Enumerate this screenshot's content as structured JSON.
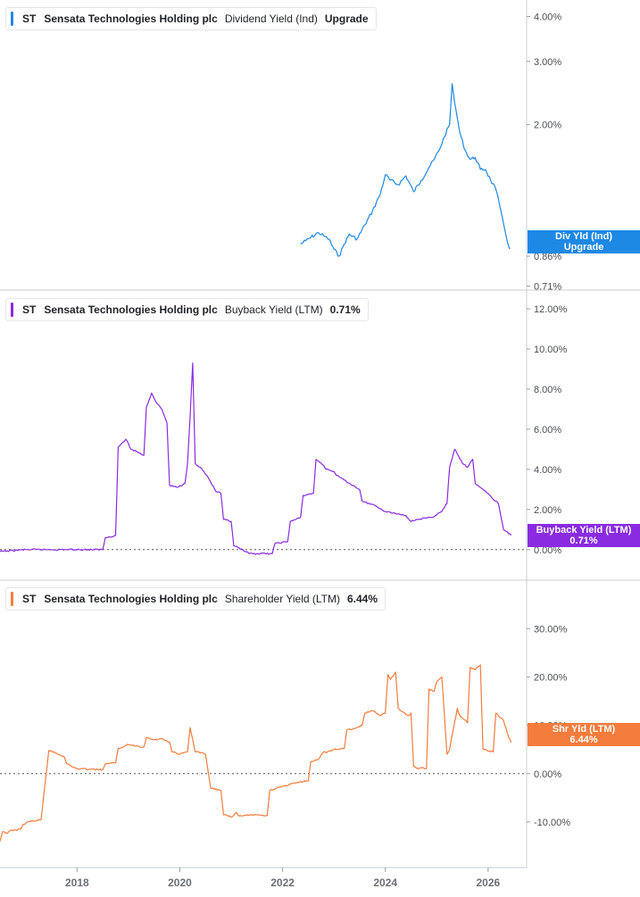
{
  "chart_data": [
    {
      "type": "line",
      "ticker": "ST",
      "company": "Sensata Technologies Holding plc",
      "metric": "Dividend Yield (Ind)",
      "legend_value": "Upgrade",
      "tag": {
        "line1": "Div Yld (Ind)",
        "line2": "Upgrade"
      },
      "color": "#1e88e5",
      "y_scale": "log",
      "ylim": [
        0.7,
        4.2
      ],
      "yticks": [
        {
          "value": 4.0,
          "label": "4.00%"
        },
        {
          "value": 3.0,
          "label": "3.00%"
        },
        {
          "value": 2.0,
          "label": "2.00%"
        },
        {
          "value": 0.86,
          "label": "0.86%"
        },
        {
          "value": 0.71,
          "label": "0.71%"
        }
      ],
      "series": [
        {
          "x": [
            2022.35,
            2022.45,
            2022.55,
            2022.7,
            2022.8,
            2022.9,
            2023.0,
            2023.1,
            2023.2,
            2023.3,
            2023.45,
            2023.6,
            2023.75,
            2023.9,
            2024.0,
            2024.1,
            2024.25,
            2024.4,
            2024.55,
            2024.7,
            2024.85,
            2024.95,
            2025.05,
            2025.15,
            2025.25,
            2025.3,
            2025.35,
            2025.45,
            2025.55,
            2025.65,
            2025.75,
            2025.85,
            2025.95,
            2026.05,
            2026.15,
            2026.25,
            2026.35,
            2026.42
          ],
          "values": [
            0.93,
            0.95,
            0.97,
            1.0,
            0.98,
            0.96,
            0.9,
            0.86,
            0.93,
            0.99,
            0.96,
            1.05,
            1.15,
            1.28,
            1.45,
            1.4,
            1.36,
            1.44,
            1.3,
            1.4,
            1.52,
            1.6,
            1.7,
            1.85,
            2.0,
            2.6,
            2.3,
            1.9,
            1.7,
            1.6,
            1.62,
            1.5,
            1.5,
            1.4,
            1.32,
            1.15,
            0.98,
            0.9
          ]
        }
      ]
    },
    {
      "type": "line",
      "ticker": "ST",
      "company": "Sensata Technologies Holding plc",
      "metric": "Buyback Yield (LTM)",
      "legend_value": "0.71%",
      "tag": {
        "line1": "Buyback Yield (LTM)",
        "line2": "0.71%"
      },
      "color": "#8a2be2",
      "ylim": [
        -0.5,
        12.0
      ],
      "zero_line": true,
      "yticks": [
        {
          "value": 12.0,
          "label": "12.00%"
        },
        {
          "value": 10.0,
          "label": "10.00%"
        },
        {
          "value": 8.0,
          "label": "8.00%"
        },
        {
          "value": 6.0,
          "label": "6.00%"
        },
        {
          "value": 4.0,
          "label": "4.00%"
        },
        {
          "value": 2.0,
          "label": "2.00%"
        },
        {
          "value": 0.0,
          "label": "0.00%"
        }
      ],
      "series": [
        {
          "x": [
            2016.5,
            2017.0,
            2017.5,
            2018.0,
            2018.5,
            2018.55,
            2018.75,
            2018.8,
            2018.95,
            2019.05,
            2019.15,
            2019.3,
            2019.35,
            2019.45,
            2019.55,
            2019.65,
            2019.75,
            2019.8,
            2019.95,
            2020.1,
            2020.15,
            2020.2,
            2020.25,
            2020.3,
            2020.4,
            2020.55,
            2020.7,
            2020.8,
            2020.85,
            2021.0,
            2021.05,
            2021.35,
            2021.8,
            2021.85,
            2022.1,
            2022.15,
            2022.35,
            2022.4,
            2022.6,
            2022.65,
            2022.8,
            2022.85,
            2023.0,
            2023.05,
            2023.3,
            2023.5,
            2023.55,
            2023.8,
            2024.0,
            2024.2,
            2024.4,
            2024.5,
            2024.6,
            2024.9,
            2025.1,
            2025.2,
            2025.25,
            2025.35,
            2025.5,
            2025.6,
            2025.7,
            2025.75,
            2025.9,
            2026.0,
            2026.1,
            2026.2,
            2026.3,
            2026.45
          ],
          "values": [
            -0.1,
            0.0,
            0.0,
            0.0,
            0.0,
            0.6,
            0.7,
            5.1,
            5.5,
            5.0,
            4.9,
            4.7,
            7.1,
            7.8,
            7.3,
            7.0,
            6.3,
            3.2,
            3.1,
            3.3,
            4.3,
            6.6,
            9.3,
            4.3,
            4.1,
            3.6,
            2.9,
            2.8,
            1.5,
            1.4,
            0.2,
            -0.2,
            -0.2,
            0.3,
            0.4,
            1.4,
            1.6,
            2.7,
            2.8,
            4.5,
            4.2,
            4.0,
            3.9,
            3.7,
            3.3,
            3.0,
            2.4,
            2.2,
            1.9,
            1.8,
            1.7,
            1.4,
            1.5,
            1.6,
            1.9,
            2.3,
            4.1,
            5.0,
            4.3,
            4.1,
            4.5,
            3.3,
            3.0,
            2.8,
            2.5,
            2.3,
            1.0,
            0.71
          ]
        }
      ]
    },
    {
      "type": "line",
      "ticker": "ST",
      "company": "Sensata Technologies Holding plc",
      "metric": "Shareholder Yield (LTM)",
      "legend_value": "6.44%",
      "tag": {
        "line1": "Shr Yld (LTM)",
        "line2": "6.44%"
      },
      "color": "#f47c3c",
      "ylim": [
        -15.0,
        33.0
      ],
      "zero_line": true,
      "yticks": [
        {
          "value": 30.0,
          "label": "30.00%"
        },
        {
          "value": 20.0,
          "label": "20.00%"
        },
        {
          "value": 10.0,
          "label": "10.00%"
        },
        {
          "value": 0.0,
          "label": "0.00%"
        },
        {
          "value": -10.0,
          "label": "-10.00%"
        }
      ],
      "series": [
        {
          "x": [
            2016.5,
            2016.55,
            2016.65,
            2016.7,
            2016.9,
            2016.95,
            2017.05,
            2017.3,
            2017.45,
            2017.55,
            2017.6,
            2017.75,
            2017.8,
            2018.0,
            2018.5,
            2018.55,
            2018.75,
            2018.8,
            2019.0,
            2019.3,
            2019.35,
            2019.5,
            2019.65,
            2019.8,
            2019.85,
            2020.0,
            2020.15,
            2020.2,
            2020.3,
            2020.45,
            2020.5,
            2020.6,
            2020.8,
            2020.85,
            2021.0,
            2021.1,
            2021.15,
            2021.5,
            2021.7,
            2021.75,
            2021.85,
            2021.9,
            2022.1,
            2022.2,
            2022.5,
            2022.55,
            2022.7,
            2022.8,
            2022.85,
            2023.0,
            2023.2,
            2023.25,
            2023.45,
            2023.55,
            2023.6,
            2023.75,
            2023.9,
            2024.0,
            2024.05,
            2024.1,
            2024.2,
            2024.25,
            2024.3,
            2024.45,
            2024.5,
            2024.55,
            2024.65,
            2024.7,
            2024.8,
            2024.85,
            2024.95,
            2025.0,
            2025.1,
            2025.2,
            2025.25,
            2025.4,
            2025.45,
            2025.6,
            2025.65,
            2025.75,
            2025.85,
            2025.9,
            2026.1,
            2026.15,
            2026.3,
            2026.4,
            2026.45
          ],
          "values": [
            -14.0,
            -12.0,
            -12.3,
            -11.8,
            -11.5,
            -10.5,
            -10.0,
            -9.5,
            4.8,
            4.5,
            4.2,
            3.5,
            2.0,
            1.0,
            0.8,
            2.0,
            2.2,
            5.2,
            6.0,
            5.5,
            7.5,
            7.0,
            7.2,
            6.5,
            4.5,
            4.0,
            4.5,
            9.5,
            4.5,
            4.3,
            4.0,
            -3.0,
            -3.5,
            -8.5,
            -9.0,
            -8.0,
            -8.8,
            -8.5,
            -8.7,
            -3.5,
            -3.2,
            -2.8,
            -2.5,
            -2.0,
            -1.5,
            2.5,
            3.0,
            4.5,
            4.3,
            5.0,
            5.2,
            9.0,
            9.5,
            10.0,
            12.5,
            13.0,
            12.0,
            12.5,
            20.5,
            19.5,
            21.0,
            13.5,
            13.0,
            12.0,
            12.5,
            1.5,
            1.0,
            1.2,
            1.0,
            17.5,
            17.0,
            19.0,
            20.0,
            4.0,
            5.0,
            13.5,
            12.0,
            10.5,
            22.0,
            21.5,
            22.5,
            5.0,
            4.5,
            12.5,
            11.0,
            7.5,
            6.44
          ]
        }
      ]
    }
  ],
  "x_axis": {
    "xlim": [
      2016.5,
      2026.75
    ],
    "ticks": [
      {
        "value": 2018,
        "label": "2018"
      },
      {
        "value": 2020,
        "label": "2020"
      },
      {
        "value": 2022,
        "label": "2022"
      },
      {
        "value": 2024,
        "label": "2024"
      },
      {
        "value": 2026,
        "label": "2026"
      }
    ]
  }
}
